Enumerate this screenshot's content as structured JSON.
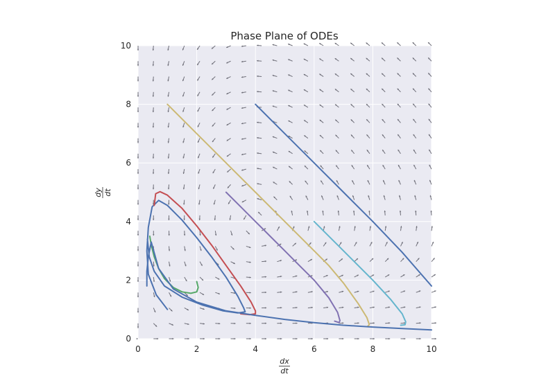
{
  "chart_data": {
    "type": "line",
    "title": "Phase Plane of ODEs",
    "xlabel": {
      "numerator": "dx",
      "denominator": "dt"
    },
    "ylabel": {
      "numerator": "dy",
      "denominator": "dt"
    },
    "xlim": [
      0,
      10
    ],
    "ylim": [
      0,
      10
    ],
    "xticks": [
      0,
      2,
      4,
      6,
      8,
      10
    ],
    "yticks": [
      0,
      2,
      4,
      6,
      8,
      10
    ],
    "grid": true,
    "background": "#eaeaf2",
    "vector_field": {
      "x_range": [
        0,
        10
      ],
      "y_range": [
        0,
        10
      ],
      "n": 20
    },
    "series": [
      {
        "color": "#4c72b0",
        "points": [
          [
            1,
            1
          ],
          [
            0.62,
            1.5
          ],
          [
            0.35,
            2.2
          ],
          [
            0.3,
            3.0
          ],
          [
            0.35,
            3.8
          ],
          [
            0.48,
            4.5
          ],
          [
            0.7,
            4.72
          ],
          [
            1.0,
            4.55
          ],
          [
            1.5,
            4.05
          ],
          [
            2.0,
            3.45
          ],
          [
            2.5,
            2.8
          ],
          [
            3.0,
            2.1
          ],
          [
            3.4,
            1.45
          ],
          [
            3.6,
            1.05
          ],
          [
            3.65,
            0.92
          ],
          [
            3.4,
            0.88
          ],
          [
            2.9,
            0.95
          ],
          [
            2.2,
            1.15
          ],
          [
            1.5,
            1.42
          ],
          [
            0.9,
            1.8
          ],
          [
            0.55,
            2.3
          ],
          [
            0.38,
            2.8
          ],
          [
            0.32,
            3.4
          ]
        ]
      },
      {
        "color": "#c44e52",
        "points": [
          [
            0.55,
            4.55
          ],
          [
            0.6,
            4.95
          ],
          [
            0.75,
            5.02
          ],
          [
            1.0,
            4.9
          ],
          [
            1.5,
            4.45
          ],
          [
            2.0,
            3.85
          ],
          [
            2.5,
            3.2
          ],
          [
            3.0,
            2.5
          ],
          [
            3.5,
            1.8
          ],
          [
            3.85,
            1.25
          ],
          [
            4.0,
            0.95
          ],
          [
            4.0,
            0.85
          ],
          [
            3.8,
            0.82
          ],
          [
            3.5,
            0.85
          ]
        ]
      },
      {
        "color": "#55a868",
        "points": [
          [
            2.0,
            1.95
          ],
          [
            2.05,
            1.75
          ],
          [
            2.0,
            1.6
          ],
          [
            1.8,
            1.55
          ],
          [
            1.5,
            1.6
          ],
          [
            1.2,
            1.75
          ],
          [
            0.9,
            2.05
          ],
          [
            0.7,
            2.4
          ],
          [
            0.55,
            2.8
          ],
          [
            0.45,
            3.2
          ],
          [
            0.4,
            3.5
          ]
        ]
      },
      {
        "color": "#8172b2",
        "points": [
          [
            3,
            5
          ],
          [
            3.5,
            4.5
          ],
          [
            4,
            4
          ],
          [
            4.5,
            3.5
          ],
          [
            5,
            3
          ],
          [
            5.5,
            2.5
          ],
          [
            6,
            2
          ],
          [
            6.5,
            1.4
          ],
          [
            6.8,
            0.9
          ],
          [
            6.88,
            0.62
          ],
          [
            6.85,
            0.55
          ],
          [
            6.7,
            0.6
          ]
        ]
      },
      {
        "color": "#ccb974",
        "points": [
          [
            1,
            8
          ],
          [
            2,
            7
          ],
          [
            3,
            6
          ],
          [
            4,
            5
          ],
          [
            5,
            4
          ],
          [
            6,
            3
          ],
          [
            6.5,
            2.5
          ],
          [
            7,
            1.9
          ],
          [
            7.5,
            1.2
          ],
          [
            7.8,
            0.72
          ],
          [
            7.88,
            0.48
          ],
          [
            7.82,
            0.42
          ]
        ]
      },
      {
        "color": "#64b5cd",
        "points": [
          [
            6,
            4
          ],
          [
            7,
            3
          ],
          [
            8,
            2
          ],
          [
            8.6,
            1.35
          ],
          [
            9.0,
            0.85
          ],
          [
            9.12,
            0.58
          ],
          [
            9.1,
            0.48
          ],
          [
            8.95,
            0.46
          ]
        ]
      },
      {
        "color": "#4c72b0",
        "points": [
          [
            4,
            8
          ],
          [
            5,
            7
          ],
          [
            6,
            6
          ],
          [
            7,
            5
          ],
          [
            8,
            4
          ],
          [
            9,
            2.95
          ],
          [
            10,
            1.8
          ]
        ]
      },
      {
        "color": "#4c72b0",
        "points": [
          [
            0.3,
            1.8
          ],
          [
            0.3,
            2.3
          ],
          [
            0.35,
            2.8
          ],
          [
            0.45,
            3.3
          ],
          [
            0.7,
            2.4
          ],
          [
            1.2,
            1.7
          ],
          [
            2,
            1.25
          ],
          [
            3,
            0.95
          ],
          [
            4,
            0.8
          ],
          [
            5,
            0.66
          ],
          [
            6,
            0.55
          ],
          [
            7,
            0.46
          ],
          [
            8,
            0.4
          ],
          [
            9,
            0.35
          ],
          [
            10,
            0.3
          ]
        ]
      }
    ]
  }
}
